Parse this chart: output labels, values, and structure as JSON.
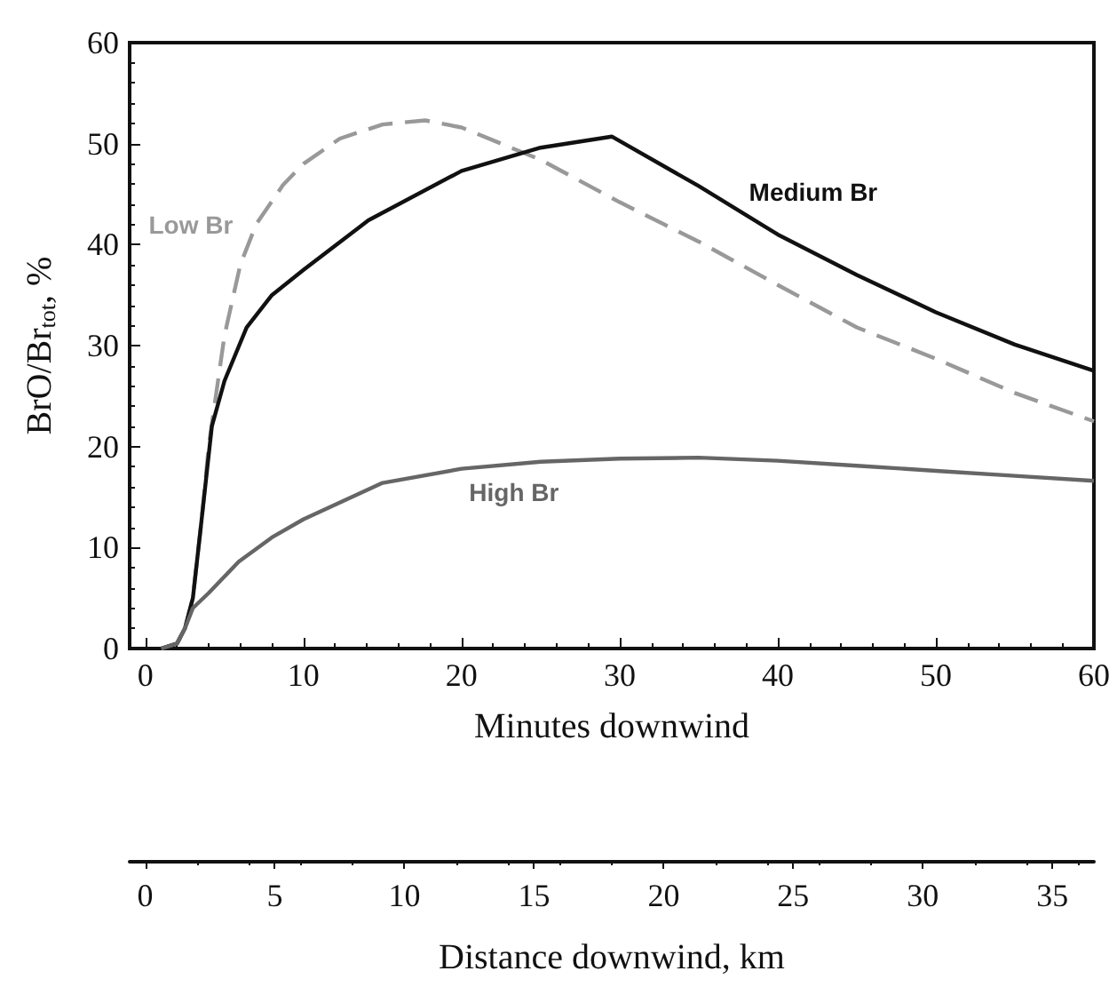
{
  "chart_data": {
    "type": "line",
    "xlabel": "Minutes downwind",
    "ylabel": "BrO/Br$_{tot}$, %",
    "x2label": "Distance downwind, km",
    "xlim": [
      -1,
      60
    ],
    "xticks": [
      0,
      10,
      20,
      30,
      40,
      50,
      60
    ],
    "ylim": [
      0,
      60
    ],
    "yticks": [
      0,
      10,
      20,
      30,
      40,
      50,
      60
    ],
    "x2lim": [
      -0.6,
      36.6
    ],
    "x2ticks": [
      0,
      5,
      10,
      15,
      20,
      25,
      30,
      35
    ],
    "grid": false,
    "marker": "none",
    "series": [
      {
        "name": "Low Br",
        "color": "#999999",
        "line_style": "dashed",
        "x": [
          1,
          2,
          2.5,
          3,
          3.5,
          3.7,
          4,
          5,
          6,
          7,
          8.7,
          10,
          12.3,
          15,
          17.7,
          20,
          25,
          30,
          35,
          40,
          45,
          50,
          55,
          60
        ],
        "values": [
          0,
          0.5,
          2,
          5,
          12,
          15,
          20,
          31,
          38,
          42,
          45.9,
          48,
          50.5,
          51.9,
          52.3,
          51.6,
          48.4,
          44.2,
          40.3,
          36,
          31.8,
          28.7,
          25.3,
          22.5
        ]
      },
      {
        "name": "Medium Br",
        "color": "#111111",
        "line_style": "solid",
        "x": [
          1,
          2,
          2.5,
          3,
          3.5,
          4.2,
          5,
          6.4,
          8,
          10,
          14.1,
          20,
          25,
          29.5,
          35,
          40,
          45,
          50,
          55,
          60
        ],
        "values": [
          0,
          0.5,
          2,
          5,
          12,
          22,
          26.5,
          31.8,
          35,
          37.5,
          42.4,
          47.3,
          49.6,
          50.7,
          45.8,
          41,
          37,
          33.3,
          30.1,
          27.5
        ]
      },
      {
        "name": "High Br",
        "color": "#666666",
        "line_style": "solid",
        "x": [
          1,
          2,
          2.5,
          3,
          4,
          5.9,
          8,
          10,
          15,
          20,
          25,
          30,
          35,
          40,
          45,
          50,
          55,
          60
        ],
        "values": [
          0,
          0.5,
          2,
          4,
          5.5,
          8.6,
          11,
          12.8,
          16.4,
          17.8,
          18.5,
          18.8,
          18.9,
          18.6,
          18.1,
          17.6,
          17.1,
          16.6
        ]
      }
    ]
  }
}
